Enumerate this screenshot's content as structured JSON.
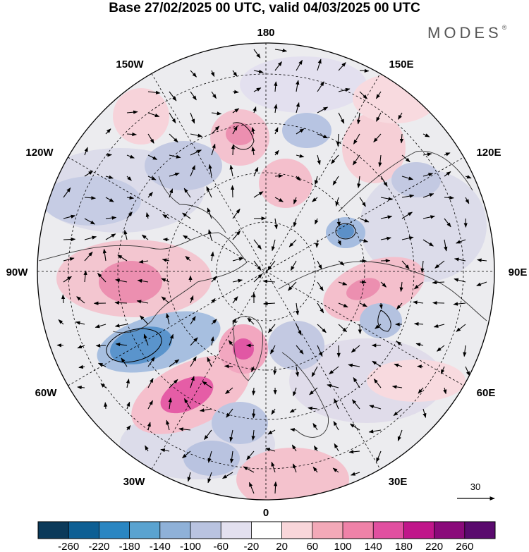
{
  "title": "Base 27/02/2025 00 UTC, valid 04/03/2025 00 UTC",
  "brand": {
    "name": "MODES",
    "mark": "®"
  },
  "longitude_labels": {
    "top": "180",
    "bottom": "0",
    "left": "90W",
    "right": "90E",
    "upper_left_1": "150W",
    "upper_left_2": "120W",
    "upper_right_1": "150E",
    "upper_right_2": "120E",
    "lower_left_1": "60W",
    "lower_left_2": "30W",
    "lower_right_1": "60E",
    "lower_right_2": "30E"
  },
  "vector_reference": {
    "label": "30"
  },
  "colorbar": {
    "ticks": [
      "-260",
      "-220",
      "-180",
      "-140",
      "-100",
      "-60",
      "-20",
      "20",
      "60",
      "100",
      "140",
      "180",
      "220",
      "260"
    ],
    "colors": [
      "#0b3a5a",
      "#0d5f94",
      "#2a86c2",
      "#5aa3d0",
      "#8fb1d8",
      "#b9c3e0",
      "#e3e0ef",
      "#ffffff",
      "#f9d6da",
      "#f3a9b8",
      "#ef82a8",
      "#e14fa0",
      "#c0168a",
      "#8a0a7a",
      "#5a0a6e"
    ]
  },
  "map_palette": {
    "land": "#cfcfcf",
    "neutral_fill": "#e9e9ec",
    "outline": "#000000",
    "grid": "#000000"
  }
}
